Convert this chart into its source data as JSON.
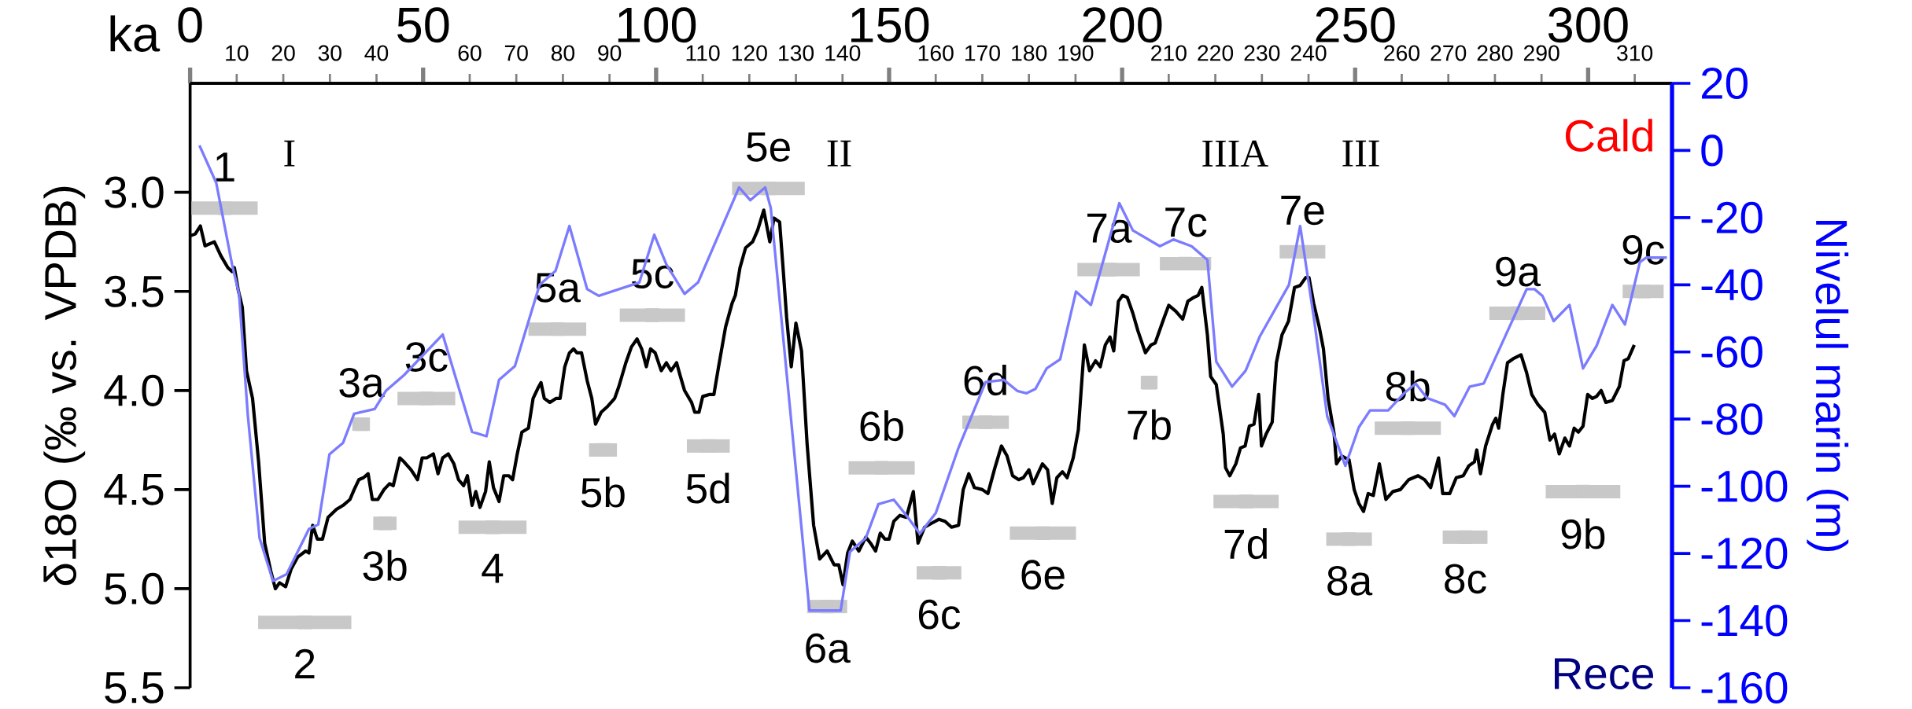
{
  "chart_data": {
    "type": "line",
    "x2label": "ka",
    "ylabel": "δ18O (‰ vs. VPDB)",
    "y2label": "Nivelul marin (m)",
    "xlim": [
      0,
      318
    ],
    "xticks": [
      10,
      20,
      30,
      40,
      60,
      70,
      80,
      90,
      110,
      120,
      130,
      140,
      160,
      170,
      180,
      190,
      210,
      220,
      230,
      240,
      260,
      270,
      280,
      290,
      310
    ],
    "x2lim": [
      0,
      318
    ],
    "x2ticks": [
      0,
      50,
      100,
      150,
      200,
      250,
      300
    ],
    "ylim": [
      5.5,
      2.45
    ],
    "yticks": [
      {
        "value": 3,
        "label": "3.0"
      },
      3.5,
      {
        "value": 4,
        "label": "4.0"
      },
      4.5,
      {
        "value": 5,
        "label": "5.0"
      },
      5.5
    ],
    "y2lim": [
      -160,
      20
    ],
    "y2ticks": [
      -160,
      -140,
      -120,
      -100,
      -80,
      -60,
      -40,
      -20,
      0,
      20
    ],
    "marker": "none",
    "series": [
      {
        "color": "#000000",
        "x": [
          0,
          1.1,
          2.2,
          3.2,
          4.2,
          5.2,
          6.6,
          8.1,
          9.0,
          9.5,
          10.3,
          11.2,
          12.1,
          13.4,
          14.7,
          16.0,
          17.3,
          18.3,
          19.2,
          20.5,
          21.7,
          23.1,
          24.8,
          25.5,
          26.3,
          27.3,
          28.4,
          29.6,
          31.4,
          32.8,
          34.3,
          35.2,
          36.2,
          37.2,
          38.2,
          39.1,
          40.3,
          41.6,
          42.8,
          43.6,
          45.0,
          45.9,
          47.4,
          48.8,
          49.8,
          50.8,
          52.2,
          53.2,
          54.2,
          55.4,
          56.6,
          57.6,
          58.7,
          59.5,
          60.5,
          61.3,
          62.2,
          63.4,
          64.2,
          65.1,
          66.3,
          67.3,
          68.4,
          69.2,
          70.2,
          71.2,
          72.6,
          73.6,
          74.6,
          75.3,
          76.0,
          77.2,
          78.5,
          79.4,
          80.4,
          81.4,
          82.3,
          83.0,
          84.0,
          85.2,
          86.2,
          87.0,
          88.2,
          89.6,
          91.1,
          92.0,
          93.5,
          94.7,
          95.9,
          96.9,
          97.9,
          98.8,
          99.8,
          101.1,
          102.2,
          103.2,
          104.4,
          105.1,
          106.1,
          107.6,
          108.3,
          109.2,
          110.0,
          111.5,
          112.4,
          113.4,
          114.9,
          116.3,
          117.0,
          118.0,
          119.2,
          120.7,
          121.8,
          123.1,
          124.4,
          125.3,
          126.5,
          127.3,
          128.0,
          129.0,
          130.0,
          131.2,
          132.4,
          133.8,
          135.1,
          136.7,
          138.2,
          139.2,
          140.1,
          141.1,
          142.1,
          143.5,
          145.0,
          146.0,
          147.1,
          148.1,
          149.1,
          150.0,
          151.0,
          152.3,
          153.7,
          155.2,
          156.2,
          157.6,
          159.1,
          160.7,
          162.0,
          163.4,
          164.9,
          165.9,
          167.1,
          168.3,
          170.0,
          171.2,
          172.7,
          174.1,
          175.3,
          176.5,
          177.8,
          178.8,
          180.0,
          180.9,
          182.9,
          184.0,
          185.0,
          186.0,
          187.2,
          188.2,
          189.5,
          190.6,
          191.9,
          193.0,
          194.3,
          195.3,
          196.4,
          197.4,
          198.2,
          199.2,
          200.1,
          201.1,
          202.3,
          203.4,
          205.0,
          206.2,
          207.1,
          208.9,
          210.0,
          211.5,
          213.0,
          214.1,
          215.4,
          216.3,
          217.1,
          218.3,
          219.0,
          220.2,
          221.7,
          222.2,
          223.1,
          224.4,
          225.4,
          226.4,
          227.3,
          228.3,
          229.3,
          229.9,
          230.9,
          232.2,
          233.1,
          234.3,
          235.7,
          237.0,
          238.2,
          239.4,
          240.1,
          241.1,
          242.3,
          243.2,
          244.2,
          245.5,
          246.0,
          247.1,
          248.7,
          249.8,
          250.8,
          251.8,
          252.8,
          253.9,
          255.2,
          256.6,
          258.1,
          259.7,
          261.5,
          263.5,
          264.9,
          266.2,
          267.9,
          268.8,
          270.3,
          271.7,
          273.2,
          274.4,
          275.6,
          276.1,
          276.9,
          278.0,
          279.5,
          280.2,
          280.8,
          281.7,
          282.7,
          283.9,
          285.6,
          286.8,
          287.9,
          289.2,
          290.7,
          291.8,
          292.8,
          293.8,
          295.0,
          296.0,
          297.0,
          297.9,
          298.9,
          299.9,
          300.9,
          301.8,
          302.8,
          303.8,
          305.2,
          306.7,
          307.7,
          308.6,
          309.9
        ],
        "values": [
          3.22,
          3.21,
          3.17,
          3.27,
          3.26,
          3.25,
          3.32,
          3.38,
          3.4,
          3.38,
          3.49,
          3.58,
          3.9,
          4.04,
          4.36,
          4.77,
          4.91,
          5.0,
          4.97,
          4.99,
          4.9,
          4.84,
          4.81,
          4.82,
          4.68,
          4.75,
          4.75,
          4.64,
          4.6,
          4.58,
          4.55,
          4.5,
          4.45,
          4.44,
          4.42,
          4.55,
          4.55,
          4.5,
          4.47,
          4.48,
          4.34,
          4.36,
          4.4,
          4.45,
          4.34,
          4.34,
          4.32,
          4.42,
          4.34,
          4.32,
          4.37,
          4.45,
          4.48,
          4.43,
          4.58,
          4.51,
          4.59,
          4.51,
          4.36,
          4.49,
          4.56,
          4.43,
          4.43,
          4.45,
          4.32,
          4.21,
          4.19,
          4.04,
          3.99,
          3.96,
          4.04,
          4.06,
          4.04,
          4.04,
          3.88,
          3.81,
          3.79,
          3.81,
          3.81,
          3.95,
          4.04,
          4.17,
          4.11,
          4.08,
          4.04,
          3.98,
          3.86,
          3.78,
          3.74,
          3.79,
          3.88,
          3.79,
          3.81,
          3.9,
          3.86,
          3.9,
          3.86,
          3.92,
          4.0,
          4.06,
          4.11,
          4.11,
          4.03,
          4.02,
          4.02,
          3.88,
          3.68,
          3.56,
          3.52,
          3.38,
          3.28,
          3.25,
          3.19,
          3.09,
          3.25,
          3.13,
          3.15,
          3.4,
          3.63,
          3.88,
          3.66,
          3.8,
          4.27,
          4.68,
          4.85,
          4.81,
          4.88,
          4.88,
          4.98,
          4.82,
          4.76,
          4.81,
          4.74,
          4.77,
          4.81,
          4.72,
          4.75,
          4.75,
          4.66,
          4.63,
          4.64,
          4.51,
          4.77,
          4.69,
          4.67,
          4.65,
          4.66,
          4.69,
          4.68,
          4.5,
          4.42,
          4.49,
          4.5,
          4.52,
          4.39,
          4.28,
          4.33,
          4.43,
          4.45,
          4.44,
          4.4,
          4.47,
          4.37,
          4.4,
          4.57,
          4.44,
          4.41,
          4.44,
          4.34,
          4.2,
          3.77,
          3.9,
          3.85,
          3.88,
          3.77,
          3.73,
          3.8,
          3.55,
          3.52,
          3.53,
          3.61,
          3.7,
          3.81,
          3.77,
          3.76,
          3.64,
          3.57,
          3.6,
          3.64,
          3.55,
          3.53,
          3.52,
          3.48,
          3.72,
          3.93,
          3.97,
          4.22,
          4.39,
          4.43,
          4.37,
          4.29,
          4.28,
          4.18,
          4.17,
          4.02,
          4.28,
          4.22,
          4.16,
          3.86,
          3.72,
          3.65,
          3.48,
          3.47,
          3.43,
          3.43,
          3.56,
          3.68,
          3.79,
          4.04,
          4.22,
          4.37,
          4.33,
          4.35,
          4.5,
          4.57,
          4.61,
          4.52,
          4.53,
          4.37,
          4.55,
          4.51,
          4.5,
          4.45,
          4.43,
          4.45,
          4.49,
          4.34,
          4.52,
          4.52,
          4.44,
          4.43,
          4.38,
          4.36,
          4.3,
          4.42,
          4.28,
          4.17,
          4.14,
          4.19,
          4.02,
          3.86,
          3.84,
          3.82,
          3.91,
          4.02,
          4.07,
          4.11,
          4.25,
          4.22,
          4.32,
          4.24,
          4.28,
          4.19,
          4.21,
          4.18,
          4.02,
          4.04,
          4.03,
          4.0,
          4.06,
          4.05,
          3.98,
          3.85,
          3.84,
          3.77
        ]
      },
      {
        "color": "#7b7bff",
        "axis": "y2",
        "x": [
          2.0,
          5.6,
          9.0,
          10.5,
          12.4,
          14.9,
          17.8,
          20.7,
          25.5,
          27.5,
          29.9,
          32.8,
          35.2,
          39.6,
          42.0,
          45.9,
          54.2,
          60.5,
          63.6,
          66.3,
          69.7,
          75.0,
          78.4,
          81.4,
          85.2,
          87.7,
          96.4,
          99.6,
          102.2,
          106.1,
          109.0,
          117.8,
          120.2,
          123.4,
          124.6,
          132.9,
          139.6,
          141.6,
          145.0,
          147.7,
          151.0,
          153.7,
          156.6,
          160.0,
          164.9,
          170.7,
          174.6,
          177.5,
          179.5,
          181.4,
          183.8,
          186.7,
          190.1,
          193.3,
          199.4,
          202.3,
          208.1,
          211.0,
          214.9,
          218.3,
          220.2,
          223.6,
          226.5,
          229.5,
          235.8,
          238.2,
          241.1,
          244.0,
          247.9,
          250.8,
          253.2,
          257.1,
          260.5,
          263.0,
          265.4,
          269.3,
          271.3,
          274.6,
          277.6,
          286.8,
          288.5,
          290.2,
          292.6,
          296.0,
          298.9,
          301.8,
          305.2,
          307.9,
          311.1,
          312.5,
          316.9
        ],
        "values": [
          1.5,
          -9.6,
          -33.9,
          -42.7,
          -79.1,
          -115.4,
          -128.2,
          -126.2,
          -112.7,
          -111.4,
          -90.5,
          -87.1,
          -78.4,
          -77.0,
          -71.6,
          -66.9,
          -54.8,
          -83.8,
          -85.1,
          -68.3,
          -64.2,
          -40.0,
          -35.9,
          -22.5,
          -41.3,
          -43.3,
          -39.3,
          -25.1,
          -33.9,
          -42.7,
          -39.3,
          -11.0,
          -14.8,
          -11.0,
          -17.1,
          -137.0,
          -137.0,
          -119.5,
          -115.4,
          -105.3,
          -104.0,
          -108.7,
          -114.1,
          -108.0,
          -88.5,
          -69.0,
          -68.3,
          -71.6,
          -72.3,
          -71.0,
          -64.9,
          -62.2,
          -42.0,
          -46.0,
          -15.7,
          -23.8,
          -28.5,
          -26.5,
          -28.5,
          -32.6,
          -62.9,
          -70.3,
          -65.6,
          -55.5,
          -40.0,
          -22.5,
          -49.4,
          -79.1,
          -93.9,
          -82.4,
          -77.4,
          -77.4,
          -72.3,
          -69.4,
          -73.7,
          -75.7,
          -79.1,
          -70.3,
          -69.4,
          -41.3,
          -41.3,
          -43.3,
          -50.8,
          -46.0,
          -64.9,
          -58.2,
          -46.0,
          -51.8,
          -33.2,
          -31.9,
          -31.9
        ]
      },
      {
        "type": "scatter",
        "color": "#c8c8c8",
        "marker": "square",
        "x": [
          7.4,
          24.6,
          36.7,
          41.8,
          50.7,
          64.9,
          78.8,
          88.6,
          99.2,
          111.2,
          124.1,
          136.7,
          148.4,
          160.7,
          170.7,
          183.0,
          197.1,
          205.8,
          213.6,
          226.6,
          238.7,
          248.7,
          261.3,
          273.6,
          284.8,
          298.9,
          311.8
        ],
        "values": [
          3.08,
          5.17,
          4.17,
          4.67,
          4.04,
          4.69,
          3.69,
          4.3,
          3.62,
          4.28,
          2.98,
          5.09,
          4.39,
          4.92,
          4.16,
          4.72,
          3.39,
          3.96,
          3.36,
          4.56,
          3.3,
          4.75,
          4.19,
          4.74,
          3.61,
          4.51,
          3.5
        ],
        "xerrors": [
          7.1,
          10.0,
          1.9,
          2.5,
          6.2,
          7.3,
          6.2,
          3.0,
          7.0,
          4.6,
          7.8,
          4.3,
          7.1,
          4.8,
          5.0,
          7.1,
          6.7,
          1.8,
          5.5,
          7.0,
          4.9,
          4.9,
          7.1,
          4.8,
          6.0,
          8.0,
          4.4
        ]
      }
    ],
    "annotations": [
      {
        "text": "1",
        "x": 7.4,
        "y": 3.08
      },
      {
        "text": "2",
        "x": 24.6,
        "y": 5.17
      },
      {
        "text": "3a",
        "x": 36.7,
        "y": 4.17
      },
      {
        "text": "3b",
        "x": 41.8,
        "y": 4.67
      },
      {
        "text": "3c",
        "x": 50.7,
        "y": 4.04
      },
      {
        "text": "4",
        "x": 64.9,
        "y": 4.69
      },
      {
        "text": "5a",
        "x": 78.8,
        "y": 3.69
      },
      {
        "text": "5b",
        "x": 88.6,
        "y": 4.3
      },
      {
        "text": "5c",
        "x": 99.2,
        "y": 3.62
      },
      {
        "text": "5d",
        "x": 111.2,
        "y": 4.28
      },
      {
        "text": "5e",
        "x": 124.1,
        "y": 2.98
      },
      {
        "text": "6a",
        "x": 136.7,
        "y": 5.09
      },
      {
        "text": "6b",
        "x": 148.4,
        "y": 4.39
      },
      {
        "text": "6c",
        "x": 160.7,
        "y": 4.92
      },
      {
        "text": "6d",
        "x": 170.7,
        "y": 4.16
      },
      {
        "text": "6e",
        "x": 183.0,
        "y": 4.72
      },
      {
        "text": "7a",
        "x": 197.1,
        "y": 3.39
      },
      {
        "text": "7b",
        "x": 205.8,
        "y": 3.96
      },
      {
        "text": "7c",
        "x": 213.6,
        "y": 3.36
      },
      {
        "text": "7d",
        "x": 226.6,
        "y": 4.56
      },
      {
        "text": "7e",
        "x": 238.7,
        "y": 3.3
      },
      {
        "text": "8a",
        "x": 248.7,
        "y": 4.75
      },
      {
        "text": "8b",
        "x": 261.3,
        "y": 4.19
      },
      {
        "text": "8c",
        "x": 273.6,
        "y": 4.74
      },
      {
        "text": "9a",
        "x": 284.8,
        "y": 3.61
      },
      {
        "text": "9b",
        "x": 298.9,
        "y": 4.51
      },
      {
        "text": "9c",
        "x": 311.8,
        "y": 3.5
      },
      "I",
      "II",
      "IIIA",
      "III",
      "Cald",
      "Rece"
    ]
  }
}
